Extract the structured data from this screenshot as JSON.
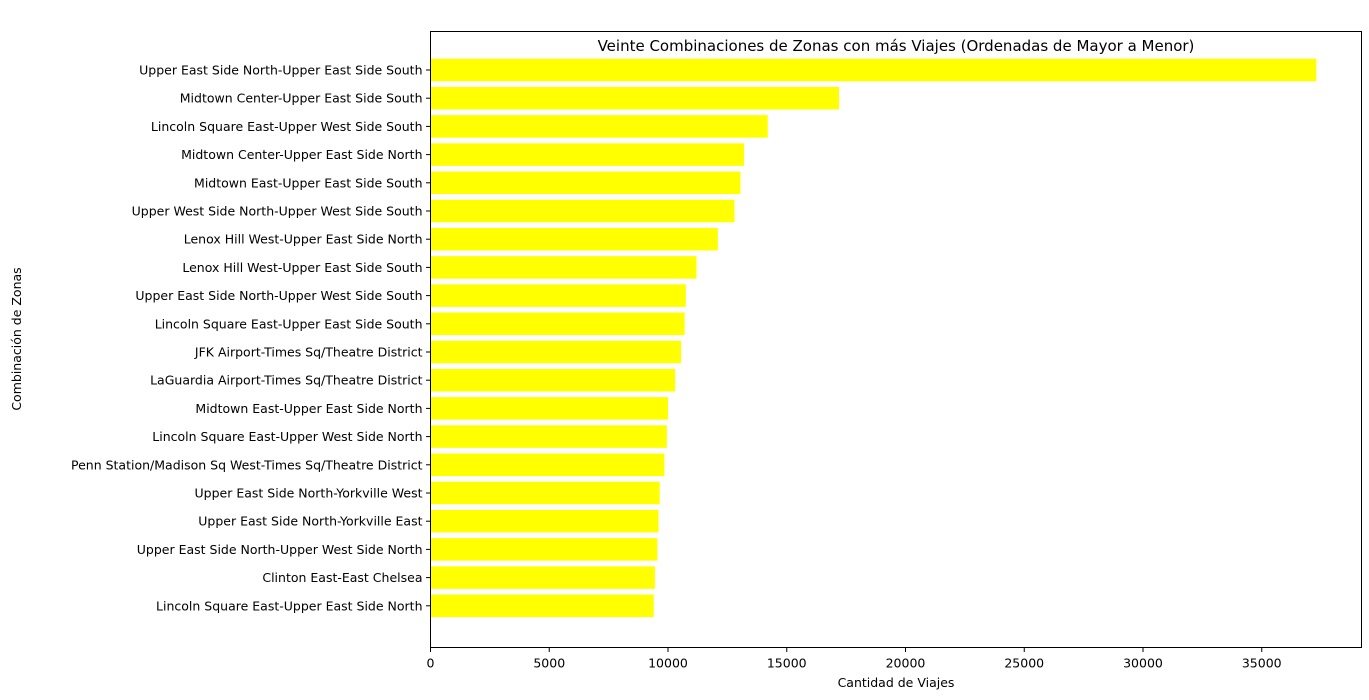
{
  "chart_data": {
    "type": "bar",
    "orientation": "horizontal",
    "title": "Veinte Combinaciones de Zonas con más Viajes (Ordenadas de Mayor a Menor)",
    "xlabel": "Cantidad de Viajes",
    "ylabel": "Combinación de Zonas",
    "xlim": [
      0,
      39200
    ],
    "xticks": [
      0,
      5000,
      10000,
      15000,
      20000,
      25000,
      30000,
      35000
    ],
    "grid": false,
    "bar_color": "#ffff00",
    "categories": [
      "Upper East Side North-Upper East Side South",
      "Midtown Center-Upper East Side South",
      "Lincoln Square East-Upper West Side South",
      "Midtown Center-Upper East Side North",
      "Midtown East-Upper East Side South",
      "Upper West Side North-Upper West Side South",
      "Lenox Hill West-Upper East Side North",
      "Lenox Hill West-Upper East Side South",
      "Upper East Side North-Upper West Side South",
      "Lincoln Square East-Upper East Side South",
      "JFK Airport-Times Sq/Theatre District",
      "LaGuardia Airport-Times Sq/Theatre District",
      "Midtown East-Upper East Side North",
      "Lincoln Square East-Upper West Side North",
      "Penn Station/Madison Sq West-Times Sq/Theatre District",
      "Upper East Side North-Yorkville West",
      "Upper East Side North-Yorkville East",
      "Upper East Side North-Upper West Side North",
      "Clinton East-East Chelsea",
      "Lincoln Square East-Upper East Side North"
    ],
    "values": [
      37300,
      17200,
      14200,
      13200,
      13050,
      12800,
      12100,
      11200,
      10750,
      10700,
      10550,
      10300,
      10000,
      9950,
      9850,
      9650,
      9600,
      9550,
      9450,
      9400
    ]
  }
}
